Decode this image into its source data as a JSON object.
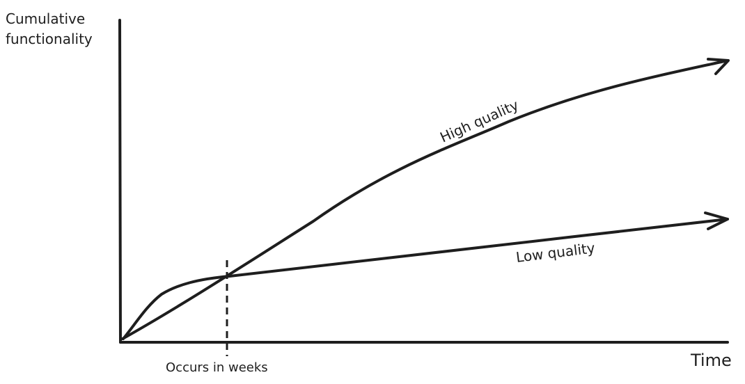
{
  "labels": {
    "y_axis_line1": "Cumulative",
    "y_axis_line2": "functionality",
    "x_axis": "Time",
    "high": "High quality",
    "low": "Low quality",
    "crossover_note": "Occurs in weeks"
  }
}
